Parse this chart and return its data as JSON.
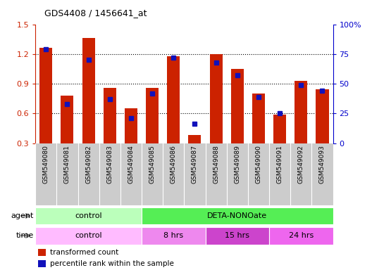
{
  "title": "GDS4408 / 1456641_at",
  "samples": [
    "GSM549080",
    "GSM549081",
    "GSM549082",
    "GSM549083",
    "GSM549084",
    "GSM549085",
    "GSM549086",
    "GSM549087",
    "GSM549088",
    "GSM549089",
    "GSM549090",
    "GSM549091",
    "GSM549092",
    "GSM549093"
  ],
  "red_values": [
    1.26,
    0.78,
    1.36,
    0.86,
    0.65,
    0.86,
    1.18,
    0.38,
    1.2,
    1.05,
    0.8,
    0.59,
    0.93,
    0.84
  ],
  "blue_values": [
    79,
    33,
    70,
    37,
    21,
    42,
    72,
    16,
    68,
    57,
    39,
    25,
    49,
    44
  ],
  "ylim_left": [
    0.3,
    1.5
  ],
  "ylim_right": [
    0,
    100
  ],
  "yticks_left": [
    0.3,
    0.6,
    0.9,
    1.2,
    1.5
  ],
  "yticks_right": [
    0,
    25,
    50,
    75,
    100
  ],
  "bar_color_red": "#cc2200",
  "bar_color_blue": "#1111bb",
  "agent_groups": [
    {
      "label": "control",
      "start": 0,
      "end": 5,
      "color": "#bbffbb"
    },
    {
      "label": "DETA-NONOate",
      "start": 5,
      "end": 14,
      "color": "#55ee55"
    }
  ],
  "time_groups": [
    {
      "label": "control",
      "start": 0,
      "end": 5,
      "color": "#ffbbff"
    },
    {
      "label": "8 hrs",
      "start": 5,
      "end": 8,
      "color": "#ee88ee"
    },
    {
      "label": "15 hrs",
      "start": 8,
      "end": 11,
      "color": "#cc44cc"
    },
    {
      "label": "24 hrs",
      "start": 11,
      "end": 14,
      "color": "#ee66ee"
    }
  ],
  "legend_red": "transformed count",
  "legend_blue": "percentile rank within the sample",
  "left_axis_color": "#cc2200",
  "right_axis_color": "#0000cc",
  "bg_color": "#ffffff",
  "xtick_bg": "#cccccc",
  "grid_dotted_yvals": [
    0.6,
    0.9,
    1.2
  ]
}
